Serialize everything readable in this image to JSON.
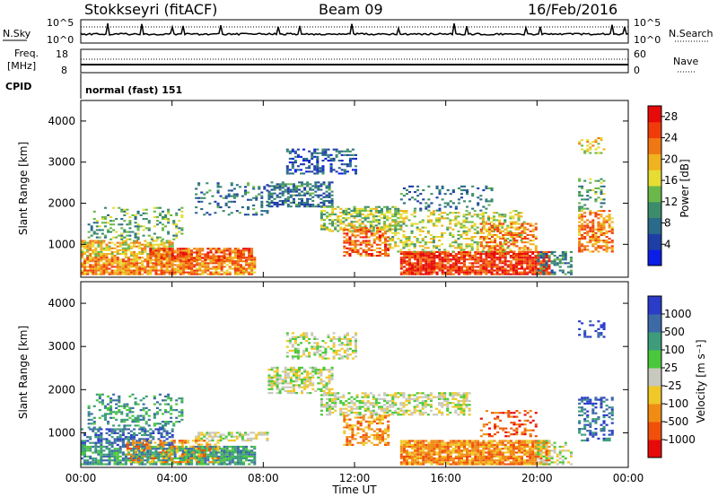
{
  "header": {
    "title": "Stokkseyri (fitACF)",
    "beam": "Beam 09",
    "date": "16/Feb/2016"
  },
  "top_panels": {
    "nsky_label": "N.Sky",
    "nsky_tick_top": "10^5",
    "nsky_tick_bottom": "10^0",
    "nsearch_label": "N.Search",
    "nsearch_tick_top": "10^5",
    "nsearch_tick_bottom": "10^0",
    "freq_label_1": "Freq.",
    "freq_label_2": "[MHz]",
    "freq_tick_top": "18",
    "freq_tick_bottom": "8",
    "nave_label": "Nave",
    "nave_tick_top": "60",
    "nave_tick_bottom": "0",
    "cpid_label": "CPID",
    "cpid_value": "normal (fast) 151"
  },
  "colors": {
    "power": [
      "#0a1ee6",
      "#1e3ea6",
      "#2a6a8a",
      "#3c8c6c",
      "#6ab84a",
      "#e6dc32",
      "#f0b21e",
      "#f07814",
      "#f03c0a",
      "#e60a0a"
    ],
    "velocity": [
      "#e60a0a",
      "#f0500a",
      "#f08c14",
      "#f0c828",
      "#c8c8be",
      "#4ac83c",
      "#3c9c7c",
      "#3c6aa6",
      "#2a3cc8"
    ],
    "frame": "#000000"
  },
  "chart_data": [
    {
      "type": "heatmap",
      "panel": "power",
      "ylabel": "Slant Range [km]",
      "yticks": [
        "1000",
        "2000",
        "3000",
        "4000"
      ],
      "ylim": [
        200,
        4500
      ],
      "xticks": [
        "00:00",
        "04:00",
        "08:00",
        "12:00",
        "16:00",
        "20:00",
        "00:00"
      ],
      "colorbar_label": "Power [dB]",
      "colorbar_ticks": [
        "4",
        "8",
        "12",
        "16",
        "20",
        "24",
        "28"
      ],
      "colorbar_range": [
        0,
        30
      ],
      "regions": [
        {
          "t0": 0.0,
          "t1": 7.6,
          "r0": 250,
          "r1": 700,
          "level": 22,
          "density": 0.85
        },
        {
          "t0": 0.0,
          "t1": 4.0,
          "r0": 700,
          "r1": 1100,
          "level": 18,
          "density": 0.7
        },
        {
          "t0": 0.3,
          "t1": 4.5,
          "r0": 1100,
          "r1": 1900,
          "level": 12,
          "density": 0.28
        },
        {
          "t0": 3.0,
          "t1": 7.5,
          "r0": 600,
          "r1": 900,
          "level": 24,
          "density": 0.75
        },
        {
          "t0": 5.0,
          "t1": 8.2,
          "r0": 1700,
          "r1": 2500,
          "level": 8,
          "density": 0.22
        },
        {
          "t0": 8.2,
          "t1": 11.0,
          "r0": 1900,
          "r1": 2500,
          "level": 8,
          "density": 0.6
        },
        {
          "t0": 9.0,
          "t1": 12.0,
          "r0": 2700,
          "r1": 3300,
          "level": 6,
          "density": 0.45
        },
        {
          "t0": 10.5,
          "t1": 14.0,
          "r0": 1300,
          "r1": 1900,
          "level": 14,
          "density": 0.55
        },
        {
          "t0": 11.5,
          "t1": 13.5,
          "r0": 700,
          "r1": 1400,
          "level": 24,
          "density": 0.65
        },
        {
          "t0": 14.0,
          "t1": 20.5,
          "r0": 250,
          "r1": 800,
          "level": 26,
          "density": 0.88
        },
        {
          "t0": 13.5,
          "t1": 19.5,
          "r0": 800,
          "r1": 1800,
          "level": 16,
          "density": 0.35
        },
        {
          "t0": 17.5,
          "t1": 20.0,
          "r0": 800,
          "r1": 1500,
          "level": 22,
          "density": 0.5
        },
        {
          "t0": 14.0,
          "t1": 18.0,
          "r0": 1800,
          "r1": 2400,
          "level": 8,
          "density": 0.2
        },
        {
          "t0": 20.0,
          "t1": 21.5,
          "r0": 250,
          "r1": 800,
          "level": 10,
          "density": 0.45
        },
        {
          "t0": 21.8,
          "t1": 23.3,
          "r0": 800,
          "r1": 1800,
          "level": 22,
          "density": 0.55
        },
        {
          "t0": 21.8,
          "t1": 23.0,
          "r0": 1800,
          "r1": 2600,
          "level": 12,
          "density": 0.3
        },
        {
          "t0": 21.8,
          "t1": 23.0,
          "r0": 3200,
          "r1": 3600,
          "level": 18,
          "density": 0.3
        }
      ]
    },
    {
      "type": "heatmap",
      "panel": "velocity",
      "ylabel": "Slant Range [km]",
      "yticks": [
        "1000",
        "2000",
        "3000",
        "4000"
      ],
      "ylim": [
        200,
        4500
      ],
      "xticks": [
        "00:00",
        "04:00",
        "08:00",
        "12:00",
        "16:00",
        "20:00",
        "00:00"
      ],
      "xlabel": "Time UT",
      "colorbar_label": "Velocity [m s⁻¹]",
      "colorbar_ticks": [
        "1000",
        "500",
        "100",
        "25",
        "-25",
        "-100",
        "-500",
        "-1000"
      ],
      "regions": [
        {
          "t0": 0.0,
          "t1": 7.6,
          "r0": 250,
          "r1": 700,
          "level": 6,
          "density": 0.8
        },
        {
          "t0": 0.0,
          "t1": 4.0,
          "r0": 700,
          "r1": 1100,
          "level": 7,
          "density": 0.6
        },
        {
          "t0": 0.3,
          "t1": 4.5,
          "r0": 1100,
          "r1": 1900,
          "level": 6,
          "density": 0.28
        },
        {
          "t0": 2.0,
          "t1": 6.0,
          "r0": 300,
          "r1": 800,
          "level": 2,
          "density": 0.35
        },
        {
          "t0": 5.0,
          "t1": 8.2,
          "r0": 800,
          "r1": 1000,
          "level": 4,
          "density": 0.6
        },
        {
          "t0": 8.2,
          "t1": 11.0,
          "r0": 1900,
          "r1": 2500,
          "level": 4,
          "density": 0.6
        },
        {
          "t0": 9.0,
          "t1": 12.0,
          "r0": 2700,
          "r1": 3300,
          "level": 4,
          "density": 0.45
        },
        {
          "t0": 10.5,
          "t1": 17.0,
          "r0": 1400,
          "r1": 1900,
          "level": 4,
          "density": 0.55
        },
        {
          "t0": 11.5,
          "t1": 13.5,
          "r0": 700,
          "r1": 1400,
          "level": 2,
          "density": 0.5
        },
        {
          "t0": 14.0,
          "t1": 20.5,
          "r0": 250,
          "r1": 800,
          "level": 2,
          "density": 0.88
        },
        {
          "t0": 17.5,
          "t1": 20.0,
          "r0": 900,
          "r1": 1500,
          "level": 1,
          "density": 0.35
        },
        {
          "t0": 20.0,
          "t1": 21.5,
          "r0": 250,
          "r1": 800,
          "level": 4,
          "density": 0.45
        },
        {
          "t0": 21.8,
          "t1": 23.3,
          "r0": 800,
          "r1": 1800,
          "level": 7,
          "density": 0.45
        },
        {
          "t0": 21.8,
          "t1": 23.0,
          "r0": 3200,
          "r1": 3600,
          "level": 8,
          "density": 0.3
        }
      ]
    }
  ]
}
